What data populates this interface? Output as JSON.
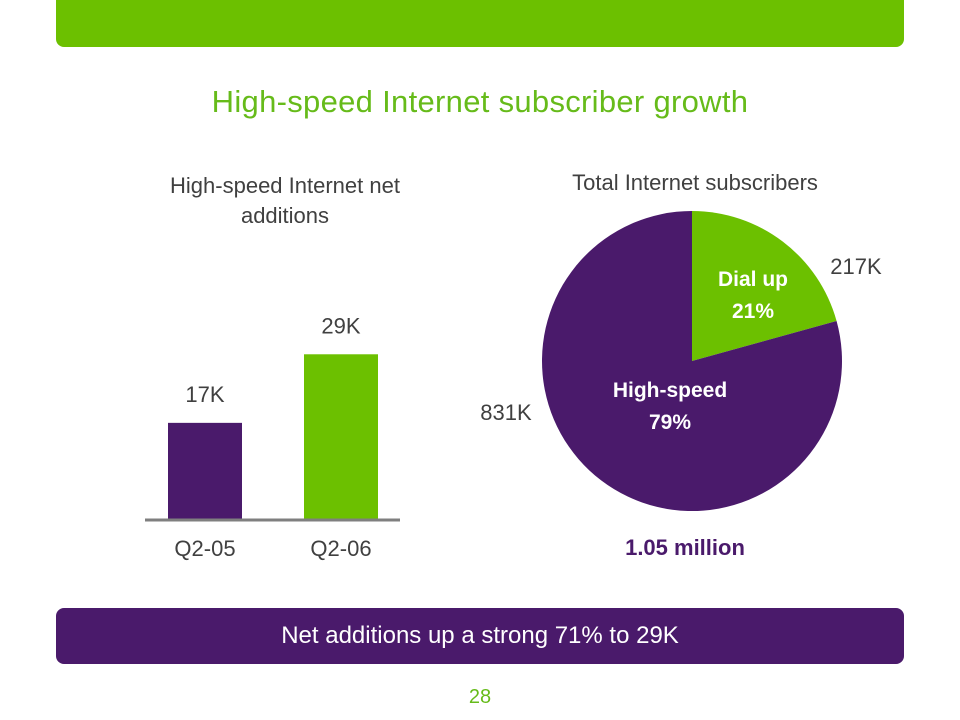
{
  "title": "High-speed Internet subscriber growth",
  "footer_message": "Net additions up a strong 71% to 29K",
  "page_number": "28",
  "colors": {
    "green": "#6cc000",
    "purple": "#4a1a6b",
    "text": "#404040"
  },
  "chart_data": [
    {
      "type": "bar",
      "title": "High-speed Internet net additions",
      "categories": [
        "Q2-05",
        "Q2-06"
      ],
      "values": [
        17,
        29
      ],
      "data_labels": [
        "17K",
        "29K"
      ],
      "colors": [
        "#4a1a6b",
        "#6cc000"
      ],
      "ylim": [
        0,
        35
      ],
      "grid": false
    },
    {
      "type": "pie",
      "title": "Total Internet subscribers",
      "slices": [
        {
          "label": "Dial up",
          "percent_label": "21%",
          "value": 217,
          "value_label": "217K",
          "color": "#6cc000"
        },
        {
          "label": "High-speed",
          "percent_label": "79%",
          "value": 831,
          "value_label": "831K",
          "color": "#4a1a6b"
        }
      ],
      "total_label": "1.05 million"
    }
  ]
}
